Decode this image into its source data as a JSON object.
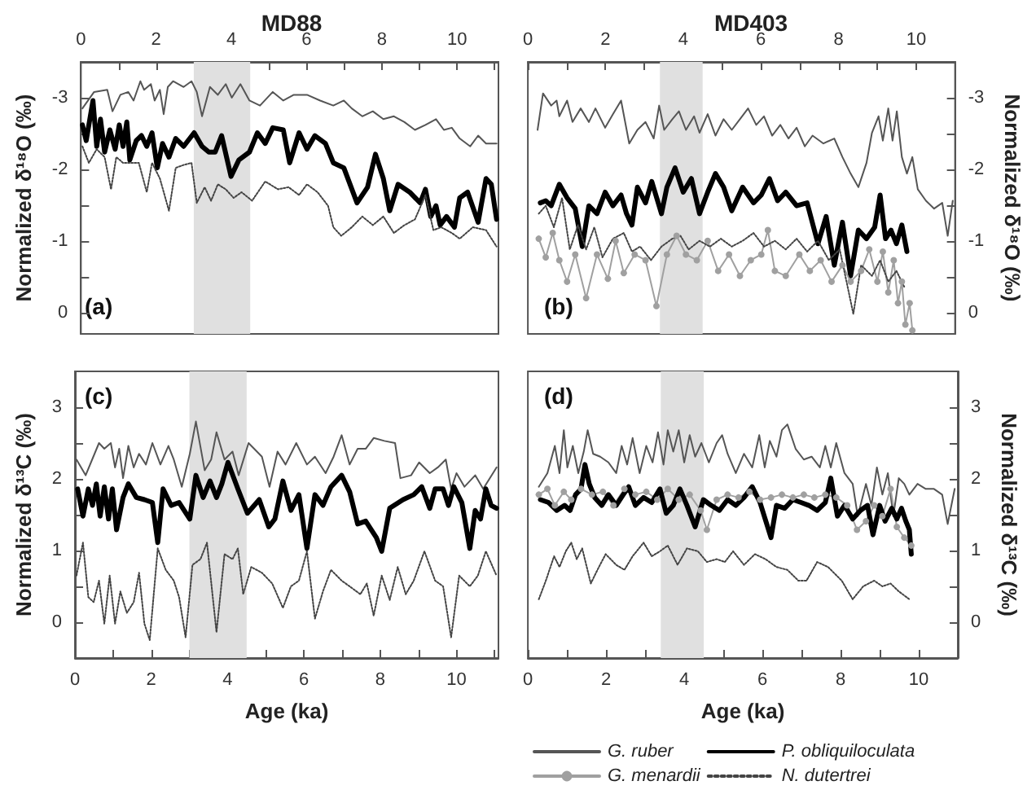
{
  "chart_data": [
    {
      "type": "line",
      "title": "MD88",
      "ylabel": "Normalized δ¹⁸O (‰)",
      "annotations": [
        "(a)"
      ],
      "xlim": [
        0,
        11.1
      ],
      "xticks": [
        0,
        {
          "value": 1,
          "label": null
        },
        2,
        {
          "value": 3,
          "label": null
        },
        4,
        {
          "value": 5,
          "label": null
        },
        6,
        {
          "value": 7,
          "label": null
        },
        8,
        {
          "value": 9,
          "label": null
        },
        10,
        {
          "value": 11,
          "label": null
        }
      ],
      "ylim": [
        0.3,
        -3.5
      ],
      "yticks": [
        {
          "value": -3.5,
          "label": null
        },
        -3,
        {
          "value": -2.5,
          "label": null
        },
        -2,
        {
          "value": -1.5,
          "label": null
        },
        -1,
        {
          "value": -0.5,
          "label": null
        },
        0
      ],
      "grid": false,
      "legend": false,
      "marker": "none",
      "line_style": "solid",
      "bands": [
        {
          "axis": "x",
          "from": 3.0,
          "to": 4.5,
          "color": "#e0e0e0"
        }
      ],
      "series": [
        {
          "color": "#555555",
          "x": [
            0.04,
            0.35,
            0.7,
            0.84,
            1.05,
            1.26,
            1.4,
            1.58,
            1.68,
            1.86,
            1.96,
            2.1,
            2.2,
            2.31,
            2.45,
            2.73,
            2.94,
            3.08,
            3.22,
            3.43,
            3.64,
            3.85,
            4.01,
            4.24,
            4.48,
            4.76,
            5.1,
            5.38,
            5.66,
            6.01,
            6.36,
            6.71,
            6.99,
            7.2,
            7.48,
            7.76,
            8.04,
            8.32,
            8.6,
            8.88,
            9.16,
            9.44,
            9.65,
            9.86,
            10.07,
            10.35,
            10.56,
            10.77,
            11.05
          ],
          "values": [
            -2.85,
            -3.08,
            -3.11,
            -2.81,
            -3.04,
            -3.08,
            -2.96,
            -3.23,
            -3.11,
            -3.19,
            -2.96,
            -3.11,
            -2.77,
            -3.15,
            -3.23,
            -3.15,
            -3.23,
            -3.08,
            -2.74,
            -3.15,
            -3.04,
            -3.19,
            -3.0,
            -3.19,
            -2.96,
            -2.89,
            -3.08,
            -2.96,
            -3.04,
            -3.04,
            -2.96,
            -2.89,
            -2.96,
            -2.85,
            -2.74,
            -2.81,
            -2.7,
            -2.74,
            -2.66,
            -2.55,
            -2.62,
            -2.7,
            -2.55,
            -2.58,
            -2.43,
            -2.32,
            -2.47,
            -2.36,
            -2.36
          ]
        },
        {
          "color": "#000000",
          "x": [
            0.04,
            0.14,
            0.32,
            0.42,
            0.52,
            0.63,
            0.77,
            0.91,
            1.02,
            1.12,
            1.22,
            1.3,
            1.47,
            1.61,
            1.75,
            1.89,
            2.03,
            2.17,
            2.34,
            2.52,
            2.73,
            3.01,
            3.22,
            3.4,
            3.57,
            3.74,
            3.99,
            4.2,
            4.48,
            4.69,
            4.9,
            5.1,
            5.38,
            5.55,
            5.8,
            6.01,
            6.22,
            6.5,
            6.71,
            6.99,
            7.34,
            7.62,
            7.83,
            8.04,
            8.21,
            8.43,
            8.74,
            9.02,
            9.16,
            9.3,
            9.44,
            9.55,
            9.72,
            9.93,
            10.07,
            10.28,
            10.56,
            10.77,
            10.91,
            11.05
          ],
          "values": [
            -2.62,
            -2.4,
            -2.96,
            -2.32,
            -2.7,
            -2.24,
            -2.55,
            -2.28,
            -2.62,
            -2.32,
            -2.66,
            -2.13,
            -2.4,
            -2.47,
            -2.32,
            -2.51,
            -2.02,
            -2.36,
            -2.17,
            -2.43,
            -2.32,
            -2.51,
            -2.32,
            -2.24,
            -2.24,
            -2.47,
            -1.9,
            -2.13,
            -2.24,
            -2.51,
            -2.36,
            -2.58,
            -2.55,
            -2.09,
            -2.51,
            -2.28,
            -2.47,
            -2.36,
            -2.09,
            -2.02,
            -1.53,
            -1.75,
            -2.21,
            -1.87,
            -1.42,
            -1.79,
            -1.68,
            -1.53,
            -1.72,
            -1.34,
            -1.49,
            -1.22,
            -1.34,
            -1.19,
            -1.6,
            -1.68,
            -1.26,
            -1.87,
            -1.79,
            -1.3
          ]
        },
        {
          "color": "#444444",
          "line_style": "dotted",
          "x": [
            0.04,
            0.21,
            0.42,
            0.63,
            0.8,
            0.94,
            1.12,
            1.33,
            1.54,
            1.75,
            1.89,
            2.1,
            2.34,
            2.52,
            2.73,
            2.94,
            3.08,
            3.29,
            3.46,
            3.64,
            3.85,
            4.06,
            4.27,
            4.55,
            4.9,
            5.24,
            5.52,
            5.8,
            6.01,
            6.29,
            6.57,
            6.71,
            6.92,
            7.2,
            7.48,
            7.76,
            8.04,
            8.32,
            8.6,
            8.88,
            9.16,
            9.37,
            9.58,
            9.86,
            10.07,
            10.42,
            10.77,
            11.05
          ],
          "values": [
            -2.32,
            -2.09,
            -2.28,
            -2.17,
            -1.72,
            -2.17,
            -2.09,
            -2.09,
            -2.09,
            -1.68,
            -2.09,
            -1.87,
            -1.42,
            -2.02,
            -2.06,
            -2.09,
            -1.53,
            -1.75,
            -1.56,
            -1.79,
            -1.72,
            -1.6,
            -1.68,
            -1.56,
            -1.83,
            -1.72,
            -1.75,
            -1.64,
            -1.79,
            -1.68,
            -1.49,
            -1.19,
            -1.07,
            -1.19,
            -1.34,
            -1.22,
            -1.34,
            -1.11,
            -1.22,
            -1.3,
            -1.64,
            -1.15,
            -1.19,
            -1.11,
            -1.03,
            -1.19,
            -1.15,
            -0.92
          ]
        }
      ]
    },
    {
      "type": "line",
      "title": "MD403",
      "ylabel": "Normalized δ¹⁸O (‰)",
      "annotations": [
        "(b)"
      ],
      "xlim": [
        0,
        11
      ],
      "xticks": [
        0,
        {
          "value": 1,
          "label": null
        },
        2,
        {
          "value": 3,
          "label": null
        },
        4,
        {
          "value": 5,
          "label": null
        },
        6,
        {
          "value": 7,
          "label": null
        },
        8,
        {
          "value": 9,
          "label": null
        },
        10,
        {
          "value": 11,
          "label": null
        }
      ],
      "ylim": [
        0.3,
        -3.5
      ],
      "yticks": [
        {
          "value": -3.5,
          "label": null
        },
        -3,
        {
          "value": -2.5,
          "label": null
        },
        -2,
        {
          "value": -1.5,
          "label": null
        },
        -1,
        {
          "value": -0.5,
          "label": null
        },
        0
      ],
      "grid": false,
      "legend": false,
      "marker": "none",
      "line_style": "solid",
      "bands": [
        {
          "axis": "x",
          "from": 3.4,
          "to": 4.5,
          "color": "#e0e0e0"
        }
      ],
      "series": [
        {
          "color": "#555555",
          "x": [
            0.25,
            0.39,
            0.6,
            0.74,
            0.81,
            1.01,
            1.15,
            1.36,
            1.57,
            1.74,
            1.99,
            2.19,
            2.4,
            2.61,
            2.82,
            3.03,
            3.24,
            3.38,
            3.51,
            3.72,
            3.89,
            4.07,
            4.28,
            4.42,
            4.63,
            4.83,
            5.04,
            5.25,
            5.46,
            5.67,
            5.88,
            6.08,
            6.29,
            6.5,
            6.71,
            6.92,
            7.13,
            7.33,
            7.61,
            7.89,
            8.1,
            8.31,
            8.51,
            8.72,
            8.86,
            9.03,
            9.14,
            9.28,
            9.39,
            9.5,
            9.63,
            9.76,
            9.9,
            10.04,
            10.25,
            10.46,
            10.67,
            10.81,
            10.94
          ],
          "values": [
            -2.55,
            -3.06,
            -2.89,
            -2.96,
            -2.74,
            -2.96,
            -2.66,
            -2.85,
            -2.66,
            -2.85,
            -2.58,
            -2.77,
            -2.96,
            -2.36,
            -2.55,
            -2.66,
            -2.43,
            -2.89,
            -2.55,
            -2.7,
            -2.81,
            -2.55,
            -2.74,
            -2.51,
            -2.77,
            -2.47,
            -2.7,
            -2.55,
            -2.7,
            -2.85,
            -2.62,
            -2.74,
            -2.47,
            -2.62,
            -2.43,
            -2.58,
            -2.32,
            -2.47,
            -2.36,
            -2.43,
            -2.17,
            -1.94,
            -1.75,
            -2.09,
            -2.51,
            -2.74,
            -2.4,
            -2.85,
            -2.4,
            -2.81,
            -2.17,
            -1.94,
            -2.17,
            -1.72,
            -1.56,
            -1.45,
            -1.53,
            -1.07,
            -1.56
          ]
        },
        {
          "color": "#000000",
          "x": [
            0.32,
            0.46,
            0.6,
            0.81,
            1.01,
            1.22,
            1.4,
            1.57,
            1.78,
            1.99,
            2.19,
            2.4,
            2.54,
            2.68,
            2.82,
            3.03,
            3.19,
            3.44,
            3.58,
            3.79,
            4.0,
            4.21,
            4.42,
            4.63,
            4.83,
            5.04,
            5.25,
            5.53,
            5.81,
            6.01,
            6.22,
            6.43,
            6.64,
            6.92,
            7.19,
            7.47,
            7.68,
            7.89,
            8.1,
            8.31,
            8.51,
            8.72,
            8.93,
            9.07,
            9.21,
            9.35,
            9.49,
            9.63,
            9.76
          ],
          "values": [
            -1.53,
            -1.56,
            -1.49,
            -1.79,
            -1.6,
            -1.45,
            -0.92,
            -1.49,
            -1.38,
            -1.68,
            -1.49,
            -1.64,
            -1.38,
            -1.22,
            -1.75,
            -1.53,
            -1.83,
            -1.38,
            -1.75,
            -2.02,
            -1.68,
            -1.87,
            -1.38,
            -1.68,
            -1.94,
            -1.75,
            -1.42,
            -1.75,
            -1.53,
            -1.64,
            -1.87,
            -1.56,
            -1.68,
            -1.49,
            -1.53,
            -0.96,
            -1.34,
            -0.66,
            -1.26,
            -0.51,
            -1.15,
            -1.03,
            -1.19,
            -1.64,
            -1.03,
            -1.15,
            -0.96,
            -1.22,
            -0.85
          ]
        },
        {
          "color": "#a0a0a0",
          "marker": "circle",
          "x": [
            0.28,
            0.46,
            0.64,
            0.81,
            1.01,
            1.22,
            1.5,
            1.78,
            2.06,
            2.26,
            2.47,
            2.75,
            3.03,
            3.31,
            3.58,
            3.83,
            4.07,
            4.35,
            4.63,
            4.9,
            5.18,
            5.46,
            5.74,
            6.01,
            6.18,
            6.36,
            6.64,
            6.99,
            7.26,
            7.54,
            7.82,
            8.1,
            8.31,
            8.58,
            8.79,
            9.0,
            9.14,
            9.28,
            9.42,
            9.53,
            9.63,
            9.72,
            9.83,
            9.9
          ],
          "values": [
            -1.03,
            -0.77,
            -1.11,
            -0.73,
            -0.43,
            -0.81,
            -0.2,
            -0.81,
            -0.47,
            -1.0,
            -0.55,
            -0.81,
            -0.73,
            -0.09,
            -0.81,
            -1.07,
            -0.81,
            -0.73,
            -1.0,
            -0.58,
            -0.81,
            -0.51,
            -0.73,
            -0.81,
            -1.15,
            -0.58,
            -0.51,
            -0.81,
            -0.58,
            -0.73,
            -0.43,
            -0.66,
            -0.43,
            -0.58,
            -0.88,
            -0.43,
            -0.85,
            -0.28,
            -0.73,
            -0.13,
            -0.43,
            0.17,
            -0.13,
            0.25
          ]
        },
        {
          "color": "#444444",
          "line_style": "dotted",
          "x": [
            0.28,
            0.46,
            0.67,
            0.88,
            1.08,
            1.29,
            1.5,
            1.71,
            1.92,
            2.19,
            2.47,
            2.68,
            2.89,
            3.17,
            3.44,
            3.72,
            3.93,
            4.14,
            4.42,
            4.69,
            4.97,
            5.25,
            5.53,
            5.81,
            6.08,
            6.36,
            6.64,
            6.92,
            7.19,
            7.47,
            7.75,
            8.03,
            8.38,
            8.58,
            8.86,
            9.07,
            9.28,
            9.49,
            9.69
          ],
          "values": [
            -1.38,
            -1.49,
            -1.19,
            -1.6,
            -0.88,
            -1.22,
            -0.88,
            -1.19,
            -0.77,
            -1.03,
            -1.11,
            -0.85,
            -0.92,
            -0.73,
            -0.92,
            -1.03,
            -1.07,
            -0.88,
            -1.0,
            -0.92,
            -1.03,
            -0.92,
            -1.0,
            -1.11,
            -0.92,
            -1.0,
            -0.88,
            -1.03,
            -0.85,
            -1.0,
            -0.73,
            -0.88,
            0.02,
            -0.66,
            -0.51,
            -0.73,
            -0.43,
            -0.58,
            -0.36
          ]
        }
      ]
    },
    {
      "type": "line",
      "xlabel": "Age (ka)",
      "ylabel": "Normalized δ¹³C (‰)",
      "annotations": [
        "(c)"
      ],
      "xlim": [
        0,
        11.1
      ],
      "xticks": [
        0,
        {
          "value": 1,
          "label": null
        },
        2,
        {
          "value": 3,
          "label": null
        },
        4,
        {
          "value": 5,
          "label": null
        },
        6,
        {
          "value": 7,
          "label": null
        },
        8,
        {
          "value": 9,
          "label": null
        },
        10,
        {
          "value": 11,
          "label": null
        }
      ],
      "ylim": [
        -0.5,
        3.5
      ],
      "yticks": [
        0,
        {
          "value": 0.5,
          "label": null
        },
        1,
        {
          "value": 1.5,
          "label": null
        },
        2,
        {
          "value": 2.5,
          "label": null
        },
        3
      ],
      "grid": false,
      "legend": false,
      "marker": "none",
      "line_style": "solid",
      "bands": [
        {
          "axis": "x",
          "from": 3.0,
          "to": 4.5,
          "color": "#e0e0e0"
        }
      ],
      "series": [
        {
          "color": "#555555",
          "x": [
            0.04,
            0.28,
            0.63,
            0.77,
            0.94,
            1.05,
            1.16,
            1.26,
            1.4,
            1.54,
            1.68,
            1.86,
            2.03,
            2.24,
            2.45,
            2.59,
            2.8,
            3.01,
            3.17,
            3.4,
            3.57,
            3.71,
            3.92,
            4.13,
            4.29,
            4.55,
            4.9,
            5.1,
            5.31,
            5.52,
            5.8,
            6.08,
            6.29,
            6.57,
            6.78,
            6.99,
            7.2,
            7.41,
            7.62,
            7.83,
            8.11,
            8.39,
            8.53,
            8.81,
            9.02,
            9.3,
            9.51,
            9.72,
            9.86,
            10.0,
            10.21,
            10.49,
            10.7,
            11.05
          ],
          "values": [
            2.27,
            2.05,
            2.5,
            2.42,
            2.5,
            2.16,
            2.42,
            2.01,
            2.46,
            2.16,
            2.35,
            2.2,
            2.5,
            2.2,
            2.46,
            2.27,
            1.89,
            2.35,
            2.8,
            2.12,
            2.27,
            2.65,
            2.27,
            2.38,
            2.05,
            2.5,
            2.31,
            1.89,
            2.38,
            2.2,
            2.5,
            2.2,
            2.31,
            2.08,
            2.31,
            2.61,
            2.2,
            2.42,
            2.42,
            2.57,
            2.53,
            2.5,
            2.01,
            2.05,
            2.23,
            2.08,
            2.16,
            2.27,
            1.86,
            2.08,
            1.89,
            2.05,
            1.86,
            2.16
          ]
        },
        {
          "color": "#000000",
          "x": [
            0.07,
            0.21,
            0.35,
            0.46,
            0.56,
            0.66,
            0.77,
            0.88,
            0.98,
            1.09,
            1.26,
            1.4,
            1.61,
            1.82,
            2.03,
            2.17,
            2.31,
            2.52,
            2.73,
            3.01,
            3.17,
            3.36,
            3.54,
            3.71,
            3.85,
            4.01,
            4.27,
            4.52,
            4.83,
            5.08,
            5.24,
            5.45,
            5.66,
            5.87,
            6.08,
            6.29,
            6.5,
            6.71,
            6.99,
            7.2,
            7.41,
            7.62,
            7.9,
            8.04,
            8.25,
            8.6,
            8.88,
            9.09,
            9.3,
            9.44,
            9.65,
            9.79,
            9.93,
            10.14,
            10.35,
            10.49,
            10.63,
            10.77,
            10.91,
            11.05
          ],
          "values": [
            1.86,
            1.48,
            1.86,
            1.63,
            1.93,
            1.48,
            1.89,
            1.44,
            1.86,
            1.29,
            1.74,
            1.93,
            1.74,
            1.71,
            1.67,
            1.11,
            1.86,
            1.63,
            1.67,
            1.44,
            2.05,
            1.74,
            1.97,
            1.74,
            1.93,
            2.23,
            1.86,
            1.52,
            1.71,
            1.33,
            1.44,
            1.97,
            1.56,
            1.78,
            1.03,
            1.78,
            1.63,
            1.89,
            2.05,
            1.82,
            1.37,
            1.41,
            1.18,
            0.99,
            1.59,
            1.71,
            1.78,
            1.89,
            1.59,
            1.86,
            1.86,
            1.63,
            1.89,
            1.67,
            1.03,
            1.56,
            1.44,
            1.86,
            1.63,
            1.59
          ]
        },
        {
          "color": "#444444",
          "line_style": "dotted",
          "x": [
            0.04,
            0.21,
            0.35,
            0.49,
            0.63,
            0.77,
            0.91,
            1.05,
            1.19,
            1.36,
            1.54,
            1.68,
            1.82,
            1.96,
            2.17,
            2.38,
            2.59,
            2.73,
            2.9,
            3.08,
            3.29,
            3.46,
            3.71,
            3.92,
            4.13,
            4.27,
            4.41,
            4.62,
            4.9,
            5.17,
            5.45,
            5.66,
            5.87,
            6.08,
            6.29,
            6.5,
            6.71,
            6.99,
            7.2,
            7.48,
            7.65,
            7.83,
            8.04,
            8.25,
            8.46,
            8.67,
            8.88,
            9.16,
            9.44,
            9.65,
            9.86,
            10.07,
            10.35,
            10.56,
            10.77,
            11.05
          ],
          "values": [
            0.65,
            1.11,
            0.35,
            0.28,
            0.58,
            -0.02,
            0.65,
            -0.02,
            0.43,
            0.13,
            0.28,
            0.69,
            -0.02,
            -0.25,
            1.03,
            0.73,
            0.58,
            0.35,
            -0.21,
            0.8,
            0.88,
            1.11,
            -0.14,
            0.95,
            0.88,
            1.03,
            0.39,
            0.77,
            0.69,
            0.54,
            0.2,
            0.5,
            0.58,
            0.99,
            0.05,
            0.43,
            0.73,
            0.58,
            0.5,
            0.39,
            0.54,
            0.09,
            0.65,
            0.31,
            0.77,
            0.39,
            0.58,
            0.99,
            0.58,
            0.5,
            -0.21,
            0.65,
            0.5,
            0.65,
            0.99,
            0.65
          ]
        }
      ]
    },
    {
      "type": "line",
      "xlabel": "Age (ka)",
      "ylabel": "Normalized δ¹³C (‰)",
      "annotations": [
        "(d)"
      ],
      "xlim": [
        0,
        11
      ],
      "xticks": [
        0,
        {
          "value": 1,
          "label": null
        },
        2,
        {
          "value": 3,
          "label": null
        },
        4,
        {
          "value": 5,
          "label": null
        },
        6,
        {
          "value": 7,
          "label": null
        },
        8,
        {
          "value": 9,
          "label": null
        },
        10,
        {
          "value": 11,
          "label": null
        }
      ],
      "ylim": [
        -0.5,
        3.5
      ],
      "yticks": [
        0,
        {
          "value": 0.5,
          "label": null
        },
        1,
        {
          "value": 1.5,
          "label": null
        },
        2,
        {
          "value": 2.5,
          "label": null
        },
        3
      ],
      "grid": false,
      "legend": "bottom",
      "marker": "none",
      "line_style": "solid",
      "bands": [
        {
          "axis": "x",
          "from": 3.4,
          "to": 4.5,
          "color": "#e0e0e0"
        }
      ],
      "series": [
        {
          "name": "G. ruber",
          "color": "#555555",
          "x": [
            0.28,
            0.5,
            0.69,
            0.81,
            0.92,
            1.01,
            1.15,
            1.29,
            1.43,
            1.53,
            1.67,
            1.85,
            2.06,
            2.26,
            2.4,
            2.54,
            2.68,
            2.86,
            3.03,
            3.19,
            3.33,
            3.47,
            3.58,
            3.72,
            3.86,
            4.0,
            4.14,
            4.28,
            4.44,
            4.63,
            4.83,
            4.97,
            5.11,
            5.32,
            5.53,
            5.74,
            5.92,
            6.06,
            6.19,
            6.36,
            6.5,
            6.64,
            6.85,
            7.06,
            7.26,
            7.47,
            7.61,
            7.75,
            7.89,
            8.1,
            8.31,
            8.44,
            8.65,
            8.79,
            8.93,
            9.07,
            9.21,
            9.35,
            9.49,
            9.63,
            9.76,
            9.97,
            10.18,
            10.39,
            10.6,
            10.74,
            10.92
          ],
          "values": [
            1.89,
            2.08,
            2.46,
            2.08,
            2.68,
            2.16,
            2.46,
            2.08,
            2.38,
            2.68,
            2.35,
            2.31,
            2.23,
            2.08,
            2.46,
            2.2,
            2.57,
            2.08,
            2.46,
            2.23,
            2.65,
            2.2,
            2.68,
            2.38,
            2.68,
            2.23,
            2.61,
            2.31,
            2.5,
            2.23,
            2.5,
            2.61,
            2.35,
            2.08,
            2.35,
            2.16,
            2.61,
            2.16,
            2.53,
            2.31,
            2.68,
            2.76,
            2.42,
            2.27,
            2.31,
            2.16,
            2.46,
            2.16,
            2.5,
            2.08,
            1.93,
            1.48,
            1.93,
            1.63,
            2.16,
            1.78,
            2.08,
            1.48,
            2.01,
            1.93,
            1.78,
            1.93,
            1.86,
            1.86,
            1.78,
            1.37,
            1.86
          ]
        },
        {
          "name": "G. menardii",
          "color": "#a0a0a0",
          "marker": "circle",
          "x": [
            0.28,
            0.5,
            0.69,
            0.92,
            1.11,
            1.36,
            1.64,
            1.92,
            2.19,
            2.47,
            2.75,
            3.03,
            3.31,
            3.58,
            3.86,
            4.14,
            4.42,
            4.58,
            4.83,
            5.11,
            5.39,
            5.67,
            5.94,
            6.22,
            6.5,
            6.78,
            7.06,
            7.33,
            7.61,
            7.89,
            8.17,
            8.42,
            8.65,
            8.86,
            9.07,
            9.28,
            9.44,
            9.63,
            9.81
          ],
          "values": [
            1.78,
            1.86,
            1.63,
            1.82,
            1.71,
            1.86,
            1.78,
            1.82,
            1.63,
            1.86,
            1.78,
            1.82,
            1.71,
            1.86,
            1.71,
            1.78,
            1.56,
            1.29,
            1.71,
            1.78,
            1.74,
            1.82,
            1.71,
            1.74,
            1.78,
            1.74,
            1.78,
            1.74,
            1.78,
            1.74,
            1.63,
            1.29,
            1.41,
            1.63,
            1.48,
            1.86,
            1.33,
            1.18,
            1.07
          ]
        },
        {
          "name": "P. obliquiloculata",
          "color": "#000000",
          "x": [
            0.32,
            0.53,
            0.74,
            0.94,
            1.08,
            1.22,
            1.36,
            1.46,
            1.57,
            1.71,
            1.89,
            2.06,
            2.26,
            2.44,
            2.58,
            2.75,
            2.96,
            3.17,
            3.38,
            3.54,
            3.72,
            3.89,
            4.07,
            4.28,
            4.49,
            4.69,
            4.9,
            5.11,
            5.32,
            5.53,
            5.74,
            5.94,
            6.22,
            6.36,
            6.57,
            6.78,
            6.99,
            7.19,
            7.4,
            7.61,
            7.75,
            7.92,
            8.1,
            8.31,
            8.51,
            8.69,
            8.83,
            9.0,
            9.14,
            9.31,
            9.44,
            9.56,
            9.67,
            9.76,
            9.81
          ],
          "values": [
            1.71,
            1.67,
            1.56,
            1.63,
            1.56,
            1.78,
            1.86,
            2.2,
            1.93,
            1.74,
            1.63,
            1.78,
            1.63,
            1.78,
            1.89,
            1.63,
            1.74,
            1.67,
            1.86,
            1.52,
            1.63,
            1.86,
            1.63,
            1.33,
            1.71,
            1.63,
            1.56,
            1.71,
            1.63,
            1.74,
            1.89,
            1.67,
            1.18,
            1.63,
            1.59,
            1.71,
            1.67,
            1.63,
            1.56,
            1.67,
            2.01,
            1.48,
            1.63,
            1.44,
            1.56,
            1.63,
            1.22,
            1.63,
            1.41,
            1.59,
            1.44,
            1.59,
            1.41,
            1.29,
            0.95
          ]
        },
        {
          "name": "N. dutertrei",
          "color": "#444444",
          "line_style": "dotted",
          "x": [
            0.28,
            0.46,
            0.67,
            0.81,
            0.97,
            1.11,
            1.25,
            1.39,
            1.61,
            1.78,
            1.99,
            2.26,
            2.47,
            2.68,
            2.96,
            3.17,
            3.38,
            3.58,
            3.83,
            4.07,
            4.35,
            4.58,
            4.83,
            5.04,
            5.25,
            5.53,
            5.81,
            6.08,
            6.36,
            6.64,
            6.92,
            7.13,
            7.4,
            7.68,
            8.03,
            8.31,
            8.58,
            8.86,
            9.07,
            9.28,
            9.49,
            9.76
          ],
          "values": [
            0.32,
            0.58,
            0.92,
            0.77,
            0.99,
            1.11,
            0.88,
            1.03,
            0.54,
            0.73,
            0.95,
            0.8,
            0.73,
            0.92,
            1.11,
            0.92,
            0.99,
            1.07,
            0.8,
            1.03,
            0.99,
            0.84,
            0.88,
            0.84,
            0.99,
            0.8,
            0.95,
            0.88,
            0.77,
            0.73,
            0.58,
            0.58,
            0.84,
            0.77,
            0.58,
            0.32,
            0.5,
            0.58,
            0.5,
            0.54,
            0.43,
            0.32
          ]
        }
      ]
    }
  ]
}
